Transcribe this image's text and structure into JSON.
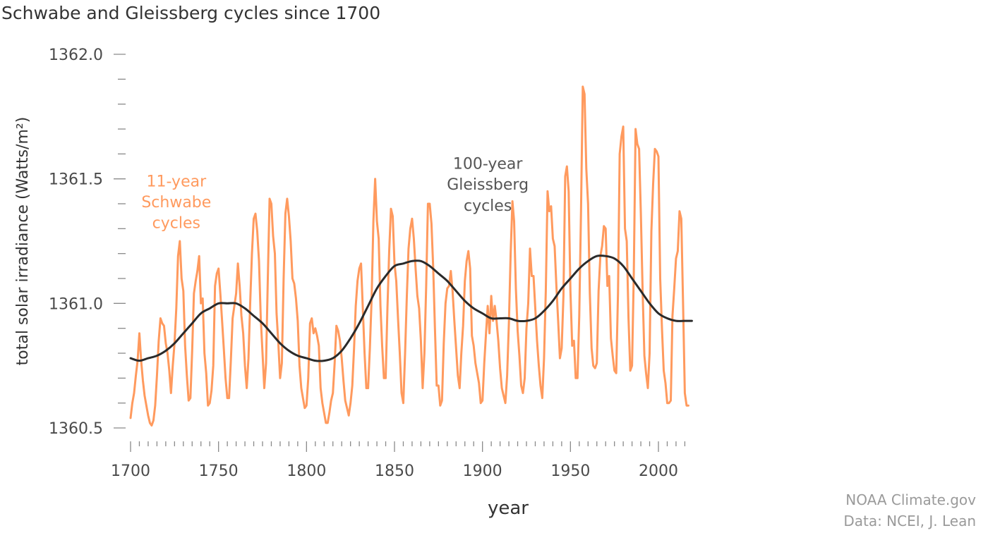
{
  "chart_data": {
    "type": "line",
    "title": "Schwabe and Gleissberg cycles since 1700",
    "xlabel": "year",
    "ylabel": "total solar irradiance (Watts/m²)",
    "xlim": [
      1700,
      2019
    ],
    "ylim": [
      1360.5,
      1362.0
    ],
    "x_ticks": [
      1700,
      1750,
      1800,
      1850,
      1900,
      1950,
      2000
    ],
    "x_tick_labels": [
      "1700",
      "1750",
      "1800",
      "1850",
      "1900",
      "1950",
      "2000"
    ],
    "x_minor_step": 5,
    "y_ticks": [
      1360.5,
      1361.0,
      1361.5,
      1362.0
    ],
    "y_tick_labels": [
      "1360.5",
      "1361.0",
      "1361.5",
      "1362.0"
    ],
    "y_minor_step": 0.1,
    "grid": false,
    "legend": "none",
    "annotations": [
      {
        "lines": [
          "11-year",
          "Schwabe",
          "cycles"
        ],
        "color": "#ff9a5e",
        "x": 1726,
        "y": 1361.47
      },
      {
        "lines": [
          "100-year",
          "Gleissberg",
          "cycles"
        ],
        "color": "#555555",
        "x": 1903,
        "y": 1361.54
      }
    ],
    "series": [
      {
        "name": "11-year Schwabe cycles (yearly TSI)",
        "color": "#ff9a5e",
        "x_start": 1700,
        "x_step": 1,
        "values": [
          1360.54,
          1360.6,
          1360.64,
          1360.71,
          1360.77,
          1360.88,
          1360.77,
          1360.69,
          1360.63,
          1360.59,
          1360.55,
          1360.52,
          1360.51,
          1360.53,
          1360.59,
          1360.71,
          1360.85,
          1360.94,
          1360.92,
          1360.91,
          1360.84,
          1360.8,
          1360.73,
          1360.64,
          1360.75,
          1360.84,
          1360.98,
          1361.19,
          1361.25,
          1361.1,
          1361.05,
          1360.83,
          1360.71,
          1360.61,
          1360.62,
          1360.81,
          1361.04,
          1361.09,
          1361.13,
          1361.19,
          1361.0,
          1361.02,
          1360.8,
          1360.72,
          1360.59,
          1360.6,
          1360.65,
          1360.75,
          1361.07,
          1361.12,
          1361.14,
          1361.04,
          1360.93,
          1360.82,
          1360.7,
          1360.62,
          1360.62,
          1360.77,
          1360.94,
          1360.99,
          1361.04,
          1361.16,
          1361.07,
          1360.95,
          1360.88,
          1360.75,
          1360.66,
          1360.78,
          1361.0,
          1361.2,
          1361.34,
          1361.36,
          1361.29,
          1361.17,
          1360.94,
          1360.8,
          1360.66,
          1360.76,
          1361.1,
          1361.42,
          1361.4,
          1361.27,
          1361.2,
          1360.96,
          1360.84,
          1360.7,
          1360.76,
          1361.1,
          1361.36,
          1361.42,
          1361.35,
          1361.25,
          1361.1,
          1361.08,
          1361.02,
          1360.93,
          1360.75,
          1360.66,
          1360.62,
          1360.58,
          1360.59,
          1360.7,
          1360.92,
          1360.94,
          1360.88,
          1360.9,
          1360.87,
          1360.83,
          1360.66,
          1360.6,
          1360.56,
          1360.52,
          1360.52,
          1360.56,
          1360.61,
          1360.64,
          1360.76,
          1360.91,
          1360.89,
          1360.85,
          1360.78,
          1360.69,
          1360.61,
          1360.58,
          1360.55,
          1360.6,
          1360.67,
          1360.82,
          1360.99,
          1361.09,
          1361.14,
          1361.16,
          1360.98,
          1360.8,
          1360.66,
          1360.66,
          1360.82,
          1361.02,
          1361.33,
          1361.5,
          1361.33,
          1361.26,
          1360.99,
          1360.83,
          1360.7,
          1360.7,
          1360.98,
          1361.21,
          1361.38,
          1361.35,
          1361.16,
          1361.09,
          1360.94,
          1360.8,
          1360.64,
          1360.6,
          1360.8,
          1361.03,
          1361.22,
          1361.3,
          1361.34,
          1361.26,
          1361.14,
          1361.03,
          1360.98,
          1360.85,
          1360.66,
          1360.8,
          1361.07,
          1361.4,
          1361.4,
          1361.32,
          1361.14,
          1360.9,
          1360.67,
          1360.67,
          1360.59,
          1360.61,
          1360.84,
          1361.0,
          1361.06,
          1361.07,
          1361.13,
          1361.05,
          1360.93,
          1360.82,
          1360.71,
          1360.66,
          1360.8,
          1360.91,
          1361.09,
          1361.17,
          1361.21,
          1361.14,
          1360.87,
          1360.83,
          1360.76,
          1360.72,
          1360.68,
          1360.6,
          1360.61,
          1360.76,
          1360.88,
          1360.99,
          1360.88,
          1361.03,
          1360.93,
          1360.99,
          1360.93,
          1360.85,
          1360.74,
          1360.66,
          1360.63,
          1360.6,
          1360.71,
          1360.92,
          1361.2,
          1361.41,
          1361.33,
          1361.06,
          1360.89,
          1360.79,
          1360.67,
          1360.64,
          1360.7,
          1360.9,
          1361.0,
          1361.22,
          1361.11,
          1361.11,
          1360.98,
          1360.85,
          1360.75,
          1360.67,
          1360.62,
          1360.78,
          1361.05,
          1361.45,
          1361.37,
          1361.39,
          1361.26,
          1361.23,
          1361.07,
          1360.93,
          1360.78,
          1360.82,
          1361.03,
          1361.51,
          1361.55,
          1361.45,
          1361.05,
          1360.83,
          1360.85,
          1360.7,
          1360.7,
          1360.95,
          1361.37,
          1361.87,
          1361.84,
          1361.54,
          1361.4,
          1361.04,
          1360.82,
          1360.75,
          1360.74,
          1360.76,
          1361.05,
          1361.19,
          1361.23,
          1361.31,
          1361.3,
          1361.07,
          1361.11,
          1360.86,
          1360.79,
          1360.73,
          1360.72,
          1361.04,
          1361.6,
          1361.67,
          1361.71,
          1361.3,
          1361.25,
          1360.94,
          1360.73,
          1360.75,
          1361.12,
          1361.7,
          1361.64,
          1361.62,
          1361.36,
          1361.05,
          1360.79,
          1360.72,
          1360.66,
          1360.8,
          1361.29,
          1361.48,
          1361.62,
          1361.61,
          1361.59,
          1361.1,
          1360.9,
          1360.73,
          1360.68,
          1360.6,
          1360.6,
          1360.61,
          1360.95,
          1361.06,
          1361.18,
          1361.21,
          1361.37,
          1361.34,
          1361.0,
          1360.64,
          1360.59,
          1360.59
        ]
      },
      {
        "name": "100-year Gleissberg cycles (smoothed TSI)",
        "color": "#2a2a2a",
        "x": [
          1700,
          1705,
          1710,
          1715,
          1720,
          1725,
          1730,
          1735,
          1740,
          1745,
          1750,
          1755,
          1760,
          1765,
          1770,
          1775,
          1780,
          1785,
          1790,
          1795,
          1800,
          1805,
          1810,
          1815,
          1820,
          1825,
          1830,
          1835,
          1840,
          1845,
          1850,
          1855,
          1860,
          1865,
          1870,
          1875,
          1880,
          1885,
          1890,
          1895,
          1900,
          1905,
          1910,
          1915,
          1920,
          1925,
          1930,
          1935,
          1940,
          1945,
          1950,
          1955,
          1960,
          1965,
          1970,
          1975,
          1980,
          1985,
          1990,
          1995,
          2000,
          2005,
          2010,
          2015,
          2019
        ],
        "values": [
          1360.78,
          1360.77,
          1360.78,
          1360.79,
          1360.81,
          1360.84,
          1360.88,
          1360.92,
          1360.96,
          1360.98,
          1361.0,
          1361.0,
          1361.0,
          1360.98,
          1360.95,
          1360.92,
          1360.88,
          1360.84,
          1360.81,
          1360.79,
          1360.78,
          1360.77,
          1360.77,
          1360.78,
          1360.81,
          1360.86,
          1360.92,
          1360.99,
          1361.06,
          1361.11,
          1361.15,
          1361.16,
          1361.17,
          1361.17,
          1361.15,
          1361.12,
          1361.09,
          1361.05,
          1361.01,
          1360.98,
          1360.96,
          1360.94,
          1360.94,
          1360.94,
          1360.93,
          1360.93,
          1360.94,
          1360.97,
          1361.01,
          1361.06,
          1361.1,
          1361.14,
          1361.17,
          1361.19,
          1361.19,
          1361.18,
          1361.15,
          1361.1,
          1361.05,
          1361.0,
          1360.96,
          1360.94,
          1360.93,
          1360.93,
          1360.93
        ]
      }
    ],
    "credit": {
      "line1": "NOAA Climate.gov",
      "line2": "Data: NCEI, J. Lean"
    }
  }
}
